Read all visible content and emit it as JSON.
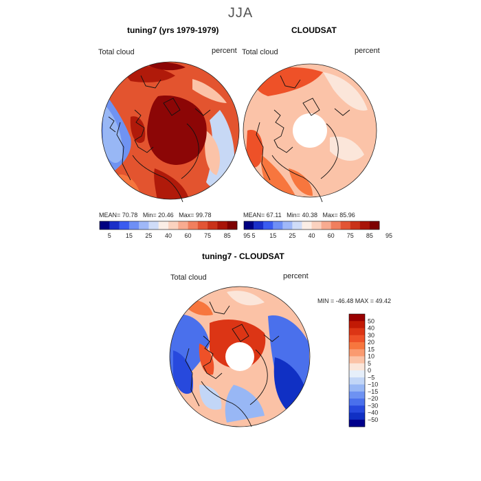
{
  "season": "JJA",
  "panels": [
    {
      "title": "tuning7 (yrs 1979-1979)",
      "field_label": "Total cloud",
      "units_label": "percent",
      "stats": {
        "mean_label": "MEAN=",
        "mean": "70.78",
        "min_label": "Min=",
        "min": "20.46",
        "max_label": "Max=",
        "max": "99.78"
      }
    },
    {
      "title": "CLOUDSAT",
      "field_label": "Total cloud",
      "units_label": "percent",
      "stats": {
        "mean_label": "MEAN=",
        "mean": "67.11",
        "min_label": "Min=",
        "min": "40.38",
        "max_label": "Max=",
        "max": "85.96"
      }
    }
  ],
  "shared_colorbar": {
    "labels": [
      "5",
      "15",
      "25",
      "40",
      "60",
      "75",
      "85",
      "95"
    ],
    "colors": [
      "#000080",
      "#1a2fc8",
      "#3a5cf0",
      "#6e8ff5",
      "#9fb8f8",
      "#cfdcf8",
      "#fbeee6",
      "#fbd2bf",
      "#f8ab90",
      "#f07f5e",
      "#e25535",
      "#c93219",
      "#a81408",
      "#7d0000"
    ]
  },
  "diff_panel": {
    "title": "tuning7 - CLOUDSAT",
    "field_label": "Total cloud",
    "units_label": "percent",
    "range_text": "MIN = -46.48 MAX =  49.42",
    "colorbar_labels": [
      "50",
      "40",
      "30",
      "20",
      "15",
      "10",
      "5",
      "0",
      "−5",
      "−10",
      "−15",
      "−20",
      "−30",
      "−40",
      "−50"
    ],
    "colorbar_colors": [
      "#990000",
      "#c21a05",
      "#dc3515",
      "#ee5128",
      "#f7763e",
      "#fa9a70",
      "#fbc2a6",
      "#fbe6da",
      "#e6effa",
      "#c2d6f7",
      "#98b7f5",
      "#6e92f2",
      "#4a70ec",
      "#2749dd",
      "#1030c4",
      "#00008c"
    ]
  },
  "colors": {
    "base_red": "#e3542f",
    "dark_red": "#b01a0a",
    "very_dark_red": "#8c0606",
    "light_salmon": "#fbc3a8",
    "pale": "#fde7db",
    "light_blue": "#c7d8f5",
    "mid_blue": "#6f93f2",
    "deep_blue": "#1d3fdd",
    "coast": "#111111",
    "pole_hole": "#ffffff"
  }
}
